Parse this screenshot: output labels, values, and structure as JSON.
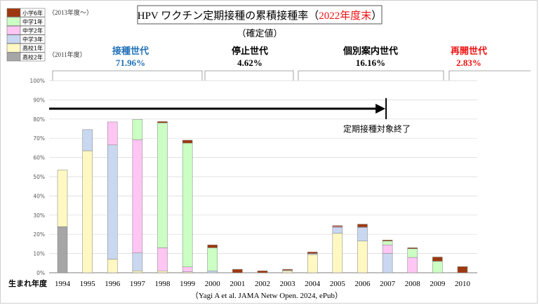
{
  "chart_data": {
    "type": "bar",
    "stacked": true,
    "title_main": "HPV ワクチン定期接種の累積接種率（",
    "title_year": "2022年度末",
    "title_close": "）",
    "subtitle": "（確定値）",
    "xlabel": "生まれ年度",
    "source": "（Yagi A et al. JAMA Netw Open. 2024, ePub）",
    "ylim": [
      0,
      100
    ],
    "yticks": [
      "0%",
      "10%",
      "20%",
      "30%",
      "40%",
      "50%",
      "60%",
      "70%",
      "80%",
      "90%",
      "100%"
    ],
    "categories": [
      "1994",
      "1995",
      "1996",
      "1997",
      "1998",
      "1999",
      "2000",
      "2001",
      "2002",
      "2003",
      "2004",
      "2005",
      "2006",
      "2007",
      "2008",
      "2009",
      "2010"
    ],
    "series": [
      {
        "name": "高校2年",
        "color": "#a6a6a6",
        "values": [
          24,
          0,
          0,
          0,
          0,
          0,
          0,
          0,
          0,
          0,
          0,
          0,
          0,
          0,
          0,
          0,
          0
        ]
      },
      {
        "name": "高校1年",
        "color": "#fff8c2",
        "values": [
          29.5,
          63.5,
          7,
          1,
          1,
          0.5,
          0,
          0,
          0,
          1,
          9.5,
          20.5,
          16.5,
          0,
          0,
          0,
          0
        ]
      },
      {
        "name": "中学3年",
        "color": "#c9d8f0",
        "values": [
          0,
          11,
          59.5,
          9.3,
          0,
          0,
          1,
          0,
          0,
          0.3,
          0.5,
          3,
          7,
          10,
          0,
          0,
          0
        ]
      },
      {
        "name": "中学2年",
        "color": "#ffc6f4",
        "values": [
          0,
          0,
          12,
          59,
          12,
          2.5,
          0,
          0,
          0,
          0,
          0,
          0.5,
          0.3,
          4.5,
          8,
          0,
          0
        ]
      },
      {
        "name": "中学1年",
        "color": "#ccffc3",
        "values": [
          0,
          0,
          0,
          10.5,
          65,
          64.5,
          12,
          0,
          0,
          0,
          0,
          0,
          0,
          2,
          4.5,
          6,
          0
        ]
      },
      {
        "name": "小学6年",
        "color": "#9e3810",
        "values": [
          0,
          0,
          0,
          0,
          0.7,
          1.5,
          1.5,
          1.8,
          1,
          0.5,
          0.8,
          0.5,
          1.5,
          0.5,
          0.5,
          2.2,
          3.2
        ]
      }
    ],
    "legend": {
      "position": "top-left",
      "note_top": "（2013年度〜）",
      "note_bottom": "（2011年度）"
    },
    "generations": [
      {
        "name": "接種世代",
        "value": "71.96%",
        "color": "#1f70b8"
      },
      {
        "name": "停止世代",
        "value": "4.62%",
        "color": "#000000"
      },
      {
        "name": "個別案内世代",
        "value": "16.16%",
        "color": "#000000"
      },
      {
        "name": "再開世代",
        "value": "2.83%",
        "color": "#ee1111"
      }
    ],
    "arrow_label": "定期接種対象終了",
    "arrow_span": [
      "1994",
      "2007"
    ],
    "grid": true
  }
}
